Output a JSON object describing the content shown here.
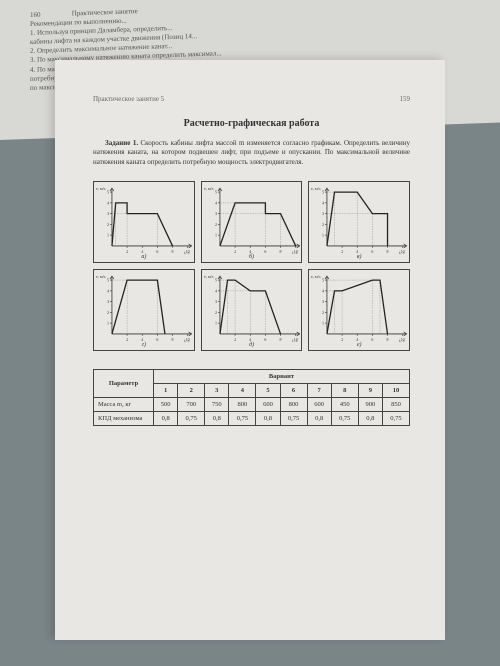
{
  "background_page": {
    "page_number": "160",
    "header_text": "Практическое занятие",
    "partial_text_lines": [
      "Рекомендации по выполнению...",
      "1. Используя принцип Даламбера, определить...",
      "кабины лифта на каждом участке движения (Позиц 14...",
      "2. Определить максимальное натяжение канат...",
      "3. По максимальному натяжению каната определить максимал...",
      "4. По максимальному натяжению каната определить макси...",
      "потребную мощность для подъема груза...",
      "по максимальной мощ. КПД механизма определить..."
    ]
  },
  "main_page": {
    "header_center": "Практическое занятие 5",
    "page_number_right": "159",
    "title": "Расчетно-графическая работа",
    "task": {
      "label": "Задание 1.",
      "text": "Скорость кабины лифта массой m изменяется согласно графикам. Определить величину натяжения каната, на котором подвешен лифт, при подъеме и опускании. По максимальной величине натяжения каната определить потребную мощность электродвигателя."
    },
    "charts": [
      {
        "id": "a",
        "caption": "а)",
        "ylabel": "v, м/с",
        "xlabel": "t, с",
        "xlim": [
          0,
          10
        ],
        "ylim": [
          0,
          5
        ],
        "xticks": [
          2,
          4,
          6,
          8,
          10
        ],
        "yticks": [
          1,
          2,
          3,
          4,
          5
        ],
        "line_color": "#222",
        "axis_color": "#333",
        "background_color": "#e8e7e3",
        "points": [
          [
            0,
            0
          ],
          [
            0.5,
            4
          ],
          [
            2,
            4
          ],
          [
            2,
            3
          ],
          [
            6,
            3
          ],
          [
            8,
            0
          ]
        ]
      },
      {
        "id": "b",
        "caption": "б)",
        "ylabel": "v, м/с",
        "xlabel": "t, с",
        "xlim": [
          0,
          10
        ],
        "ylim": [
          0,
          5
        ],
        "xticks": [
          2,
          4,
          6,
          8,
          10
        ],
        "yticks": [
          1,
          2,
          3,
          4,
          5
        ],
        "line_color": "#222",
        "axis_color": "#333",
        "background_color": "#e8e7e3",
        "points": [
          [
            0,
            0
          ],
          [
            2,
            4
          ],
          [
            6,
            4
          ],
          [
            6,
            3
          ],
          [
            8,
            3
          ],
          [
            10,
            0
          ]
        ]
      },
      {
        "id": "c",
        "caption": "в)",
        "ylabel": "v, м/с",
        "xlabel": "t, с",
        "xlim": [
          0,
          10
        ],
        "ylim": [
          0,
          5
        ],
        "xticks": [
          2,
          4,
          6,
          8,
          10
        ],
        "yticks": [
          1,
          2,
          3,
          4,
          5
        ],
        "line_color": "#222",
        "axis_color": "#333",
        "background_color": "#e8e7e3",
        "points": [
          [
            0,
            0
          ],
          [
            1,
            5
          ],
          [
            4,
            5
          ],
          [
            6,
            3
          ],
          [
            8,
            3
          ],
          [
            8,
            0
          ]
        ]
      },
      {
        "id": "d",
        "caption": "г)",
        "ylabel": "v, м/с",
        "xlabel": "t, с",
        "xlim": [
          0,
          10
        ],
        "ylim": [
          0,
          5
        ],
        "xticks": [
          2,
          4,
          6,
          8,
          10
        ],
        "yticks": [
          1,
          2,
          3,
          4,
          5
        ],
        "line_color": "#222",
        "axis_color": "#333",
        "background_color": "#e8e7e3",
        "points": [
          [
            0,
            0
          ],
          [
            2,
            5
          ],
          [
            6,
            5
          ],
          [
            7,
            0
          ]
        ]
      },
      {
        "id": "e",
        "caption": "д)",
        "ylabel": "v, м/с",
        "xlabel": "t, с",
        "xlim": [
          0,
          10
        ],
        "ylim": [
          0,
          5
        ],
        "xticks": [
          2,
          4,
          6,
          8,
          10
        ],
        "yticks": [
          1,
          2,
          3,
          4,
          5
        ],
        "line_color": "#222",
        "axis_color": "#333",
        "background_color": "#e8e7e3",
        "points": [
          [
            0,
            0
          ],
          [
            1,
            5
          ],
          [
            2,
            5
          ],
          [
            4,
            4
          ],
          [
            6,
            4
          ],
          [
            8,
            0
          ]
        ]
      },
      {
        "id": "f",
        "caption": "е)",
        "ylabel": "v, м/с",
        "xlabel": "t, с",
        "xlim": [
          0,
          10
        ],
        "ylim": [
          0,
          5
        ],
        "xticks": [
          2,
          4,
          6,
          8,
          10
        ],
        "yticks": [
          1,
          2,
          3,
          4,
          5
        ],
        "line_color": "#222",
        "axis_color": "#333",
        "background_color": "#e8e7e3",
        "points": [
          [
            0,
            0
          ],
          [
            1,
            4
          ],
          [
            2,
            4
          ],
          [
            6,
            5
          ],
          [
            7,
            5
          ],
          [
            8,
            0
          ]
        ]
      }
    ],
    "table": {
      "param_header": "Параметр",
      "variant_header": "Вариант",
      "columns": [
        "1",
        "2",
        "3",
        "4",
        "5",
        "6",
        "7",
        "8",
        "9",
        "10"
      ],
      "rows": [
        {
          "param": "Масса m, кг",
          "values": [
            "500",
            "700",
            "750",
            "800",
            "600",
            "800",
            "600",
            "450",
            "900",
            "850"
          ]
        },
        {
          "param": "КПД механизма",
          "values": [
            "0,8",
            "0,75",
            "0,8",
            "0,75",
            "0,8",
            "0,75",
            "0,8",
            "0,75",
            "0,8",
            "0,75"
          ]
        }
      ]
    }
  }
}
